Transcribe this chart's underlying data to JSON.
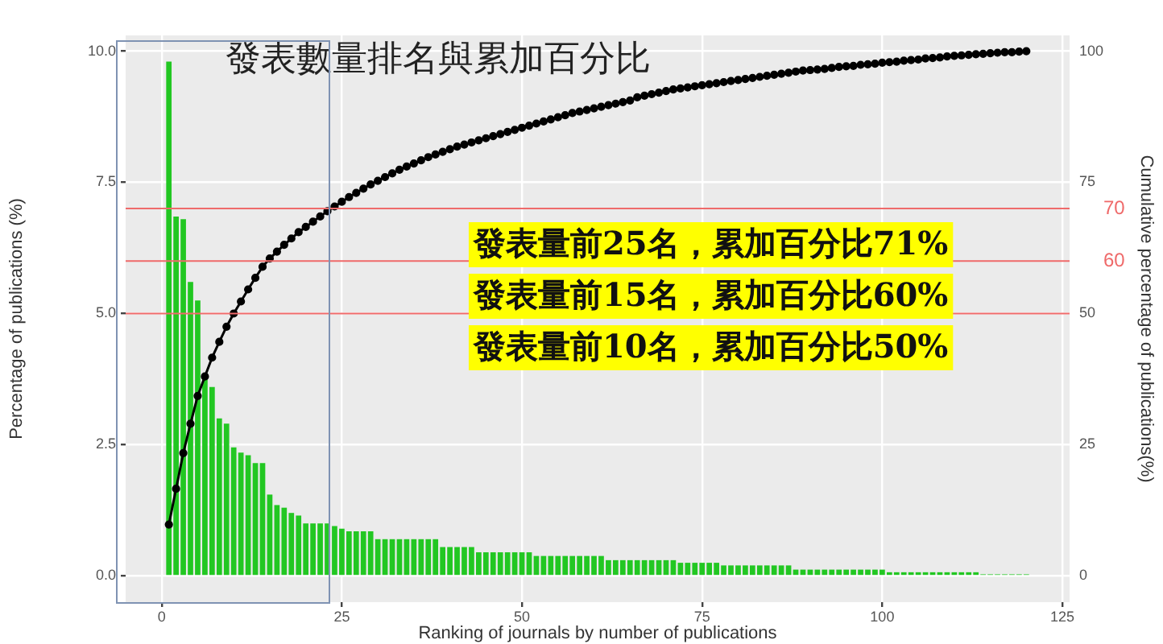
{
  "chart_data": {
    "type": "bar",
    "title": "發表數量排名與累加百分比",
    "xlabel": "Ranking of journals by number of publications",
    "ylabel": "Percentage of publications (%)",
    "y2label": "Cumulative percentage of publications(%)",
    "x": [
      1,
      2,
      3,
      4,
      5,
      6,
      7,
      8,
      9,
      10,
      11,
      12,
      13,
      14,
      15,
      16,
      17,
      18,
      19,
      20,
      21,
      22,
      23,
      24,
      25,
      26,
      27,
      28,
      29,
      30,
      31,
      32,
      33,
      34,
      35,
      36,
      37,
      38,
      39,
      40,
      41,
      42,
      43,
      44,
      45,
      46,
      47,
      48,
      49,
      50,
      51,
      52,
      53,
      54,
      55,
      56,
      57,
      58,
      59,
      60,
      61,
      62,
      63,
      64,
      65,
      66,
      67,
      68,
      69,
      70,
      71,
      72,
      73,
      74,
      75,
      76,
      77,
      78,
      79,
      80,
      81,
      82,
      83,
      84,
      85,
      86,
      87,
      88,
      89,
      90,
      91,
      92,
      93,
      94,
      95,
      96,
      97,
      98,
      99,
      100,
      101,
      102,
      103,
      104,
      105,
      106,
      107,
      108,
      109,
      110,
      111,
      112,
      113,
      114,
      115,
      116,
      117,
      118,
      119,
      120
    ],
    "series": [
      {
        "color": "#22c722",
        "values": [
          9.8,
          6.85,
          6.8,
          5.6,
          5.25,
          3.75,
          3.6,
          3.0,
          2.9,
          2.45,
          2.35,
          2.3,
          2.15,
          2.15,
          1.55,
          1.35,
          1.3,
          1.2,
          1.15,
          1.0,
          1.0,
          1.0,
          1.0,
          0.95,
          0.9,
          0.85,
          0.85,
          0.85,
          0.85,
          0.7,
          0.7,
          0.7,
          0.7,
          0.7,
          0.7,
          0.7,
          0.7,
          0.7,
          0.55,
          0.55,
          0.55,
          0.55,
          0.55,
          0.45,
          0.45,
          0.45,
          0.45,
          0.45,
          0.45,
          0.45,
          0.45,
          0.38,
          0.38,
          0.38,
          0.38,
          0.38,
          0.38,
          0.38,
          0.38,
          0.38,
          0.38,
          0.3,
          0.3,
          0.3,
          0.3,
          0.3,
          0.3,
          0.3,
          0.3,
          0.3,
          0.3,
          0.25,
          0.25,
          0.25,
          0.25,
          0.25,
          0.25,
          0.2,
          0.2,
          0.2,
          0.2,
          0.2,
          0.2,
          0.2,
          0.2,
          0.2,
          0.2,
          0.12,
          0.12,
          0.12,
          0.12,
          0.12,
          0.12,
          0.12,
          0.12,
          0.12,
          0.12,
          0.12,
          0.12,
          0.12,
          0.07,
          0.07,
          0.07,
          0.07,
          0.07,
          0.07,
          0.07,
          0.07,
          0.07,
          0.07,
          0.07,
          0.07,
          0.07,
          0.03,
          0.03,
          0.03,
          0.03,
          0.03,
          0.03,
          0.03
        ]
      },
      {
        "type": "line",
        "axis": "y2",
        "color": "#000000",
        "values": [
          9.8,
          16.6,
          23.4,
          29.0,
          34.3,
          38.0,
          41.6,
          44.6,
          47.5,
          50.0,
          52.3,
          54.6,
          56.8,
          58.9,
          60.5,
          61.8,
          63.1,
          64.3,
          65.5,
          66.5,
          67.5,
          68.5,
          69.5,
          70.4,
          71.3,
          72.2,
          73.0,
          73.8,
          74.6,
          75.3,
          76.0,
          76.7,
          77.4,
          78.0,
          78.6,
          79.2,
          79.8,
          80.3,
          80.8,
          81.3,
          81.8,
          82.2,
          82.6,
          83.0,
          83.4,
          83.8,
          84.2,
          84.6,
          85.0,
          85.4,
          85.8,
          86.2,
          86.6,
          87.0,
          87.4,
          87.8,
          88.2,
          88.5,
          88.8,
          89.1,
          89.4,
          89.7,
          90.0,
          90.3,
          90.6,
          91.2,
          91.5,
          91.8,
          92.1,
          92.4,
          92.7,
          92.9,
          93.1,
          93.3,
          93.5,
          93.7,
          93.9,
          94.1,
          94.3,
          94.5,
          94.7,
          94.9,
          95.1,
          95.3,
          95.5,
          95.7,
          95.9,
          96.1,
          96.3,
          96.4,
          96.5,
          96.6,
          96.8,
          97.0,
          97.1,
          97.2,
          97.4,
          97.5,
          97.6,
          97.8,
          97.9,
          98.0,
          98.2,
          98.3,
          98.4,
          98.6,
          98.7,
          98.8,
          99.0,
          99.1,
          99.2,
          99.3,
          99.4,
          99.5,
          99.6,
          99.7,
          99.8,
          99.8,
          99.9,
          100
        ]
      }
    ],
    "xlim": [
      -5,
      126
    ],
    "xticks": [
      0,
      25,
      50,
      75,
      100,
      125
    ],
    "ylim": [
      -0.5,
      10.3
    ],
    "yticks": [
      {
        "value": 0,
        "label": "0.0"
      },
      {
        "value": 2.5,
        "label": "2.5"
      },
      {
        "value": 5,
        "label": "5.0"
      },
      {
        "value": 7.5,
        "label": "7.5"
      },
      {
        "value": 10,
        "label": "10.0"
      }
    ],
    "y2lim": [
      -5,
      103
    ],
    "y2ticks": [
      0,
      25,
      50,
      75,
      100
    ],
    "ref_lines": [
      {
        "axis": "y2",
        "value": 70,
        "label": "70",
        "color": "#ef6a6a"
      },
      {
        "axis": "y2",
        "value": 60,
        "label": "60",
        "color": "#ef6a6a"
      },
      {
        "axis": "y2",
        "value": 50,
        "color": "#ef6a6a"
      }
    ],
    "annotations": [
      "發表量前25名，累加百分比71%",
      "發表量前15名，累加百分比60%",
      "發表量前10名，累加百分比50%"
    ],
    "grid": true,
    "legend": false,
    "marker": "circle"
  }
}
